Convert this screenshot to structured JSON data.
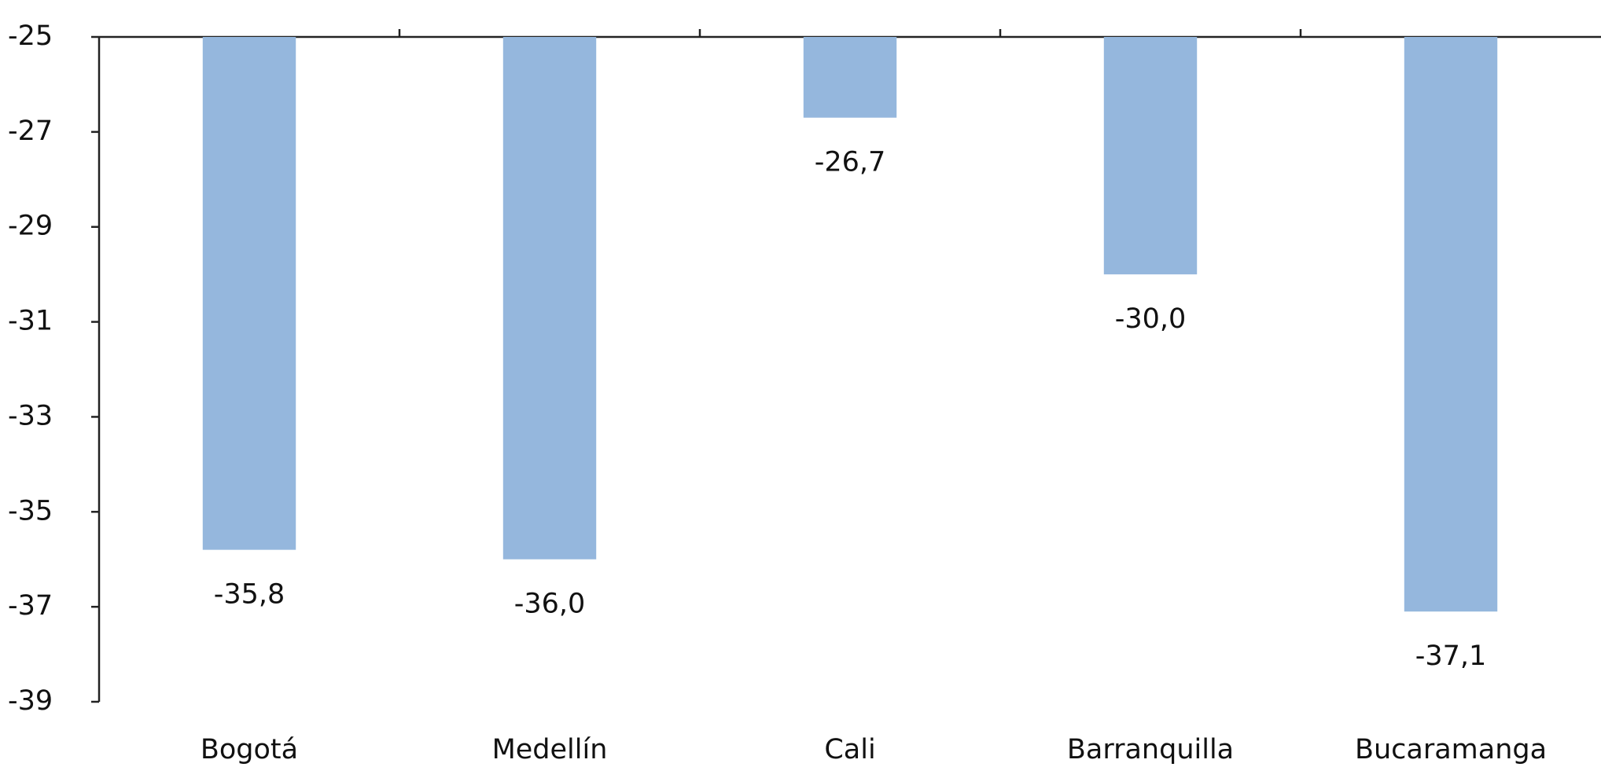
{
  "chart_data": {
    "type": "bar",
    "categories": [
      "Bogotá",
      "Medellín",
      "Cali",
      "Barranquilla",
      "Bucaramanga"
    ],
    "values": [
      -35.8,
      -36.0,
      -26.7,
      -30.0,
      -37.1
    ],
    "value_labels": [
      "-35,8",
      "-36,0",
      "-26,7",
      "-30,0",
      "-37,1"
    ],
    "color": "#95b7dd",
    "ylim": [
      -39,
      -25
    ],
    "yticks": [
      -25,
      -27,
      -29,
      -31,
      -33,
      -35,
      -37,
      -39
    ],
    "grid": false
  }
}
